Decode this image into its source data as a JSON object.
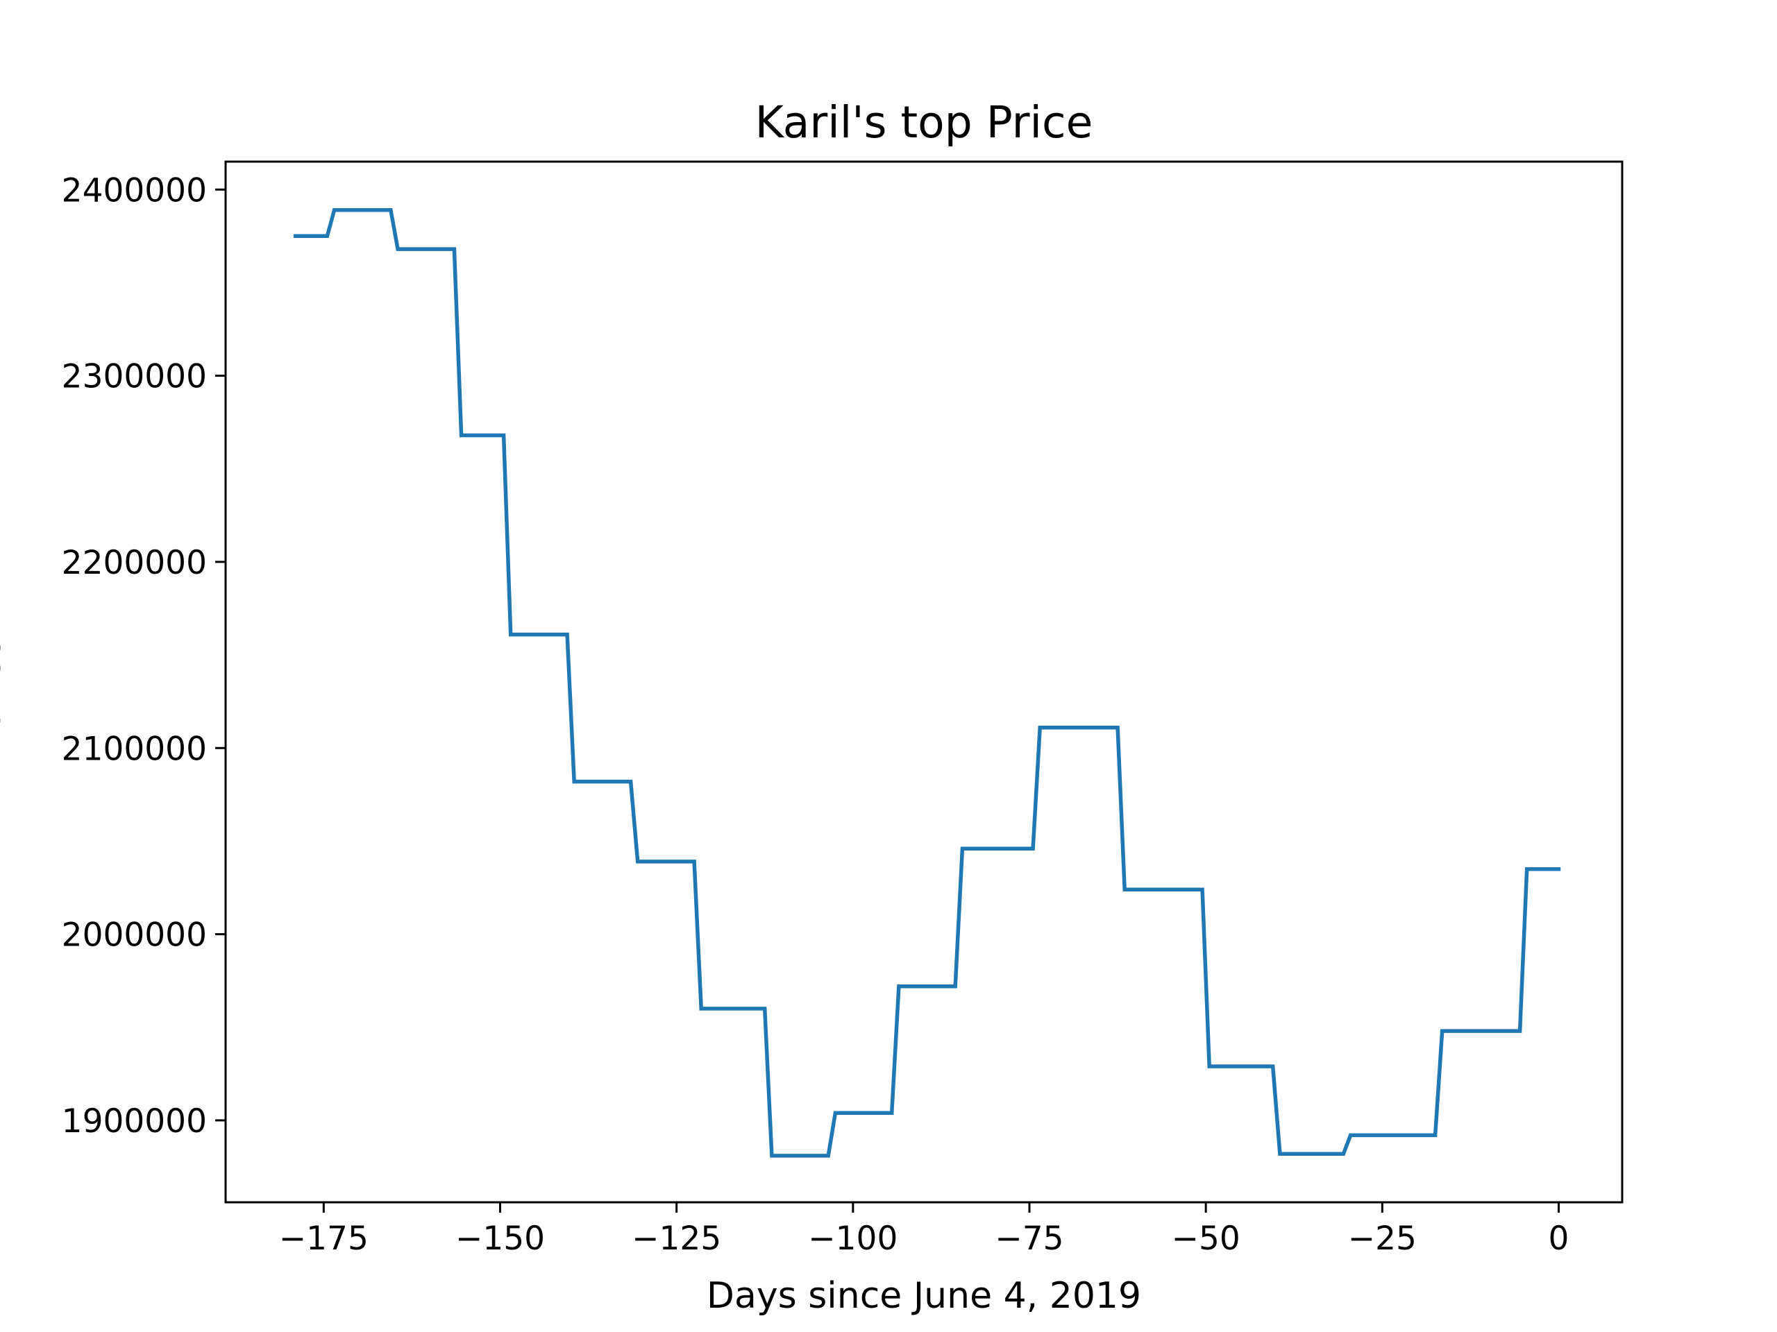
{
  "chart_data": {
    "type": "line",
    "title": "Karil's top Price",
    "xlabel": "Days since June 4, 2019",
    "ylabel": "Price",
    "xlim": [
      -188.9,
      9.0
    ],
    "ylim": [
      1856000,
      2415000
    ],
    "xticks": [
      -175,
      -150,
      -125,
      -100,
      -75,
      -50,
      -25,
      0
    ],
    "xtick_labels": [
      "−175",
      "−150",
      "−125",
      "−100",
      "−75",
      "−50",
      "−25",
      "0"
    ],
    "yticks": [
      1900000,
      2000000,
      2100000,
      2200000,
      2300000,
      2400000
    ],
    "ytick_labels": [
      "1900000",
      "2000000",
      "2100000",
      "2200000",
      "2300000",
      "2400000"
    ],
    "grid": false,
    "legend": "none",
    "colors": {
      "line": "#1f77b4",
      "axes": "#000000",
      "background": "#ffffff"
    },
    "series": [
      {
        "x": [
          -179,
          -174.5,
          -173.5,
          -165.5,
          -164.5,
          -156.5,
          -155.5,
          -149.5,
          -148.5,
          -140.5,
          -139.5,
          -131.5,
          -130.5,
          -122.5,
          -121.5,
          -112.5,
          -111.5,
          -103.5,
          -102.5,
          -94.5,
          -93.5,
          -85.5,
          -84.5,
          -74.5,
          -73.5,
          -62.5,
          -61.5,
          -50.5,
          -49.5,
          -40.5,
          -39.5,
          -30.5,
          -29.5,
          -17.5,
          -16.5,
          -5.5,
          -4.5,
          0
        ],
        "y": [
          2375000,
          2375000,
          2389000,
          2389000,
          2368000,
          2368000,
          2268000,
          2268000,
          2161000,
          2161000,
          2082000,
          2082000,
          2039000,
          2039000,
          1960000,
          1960000,
          1881000,
          1881000,
          1904000,
          1904000,
          1972000,
          1972000,
          2046000,
          2046000,
          2111000,
          2111000,
          2024000,
          2024000,
          1929000,
          1929000,
          1882000,
          1882000,
          1892000,
          1892000,
          1948000,
          1948000,
          2035000,
          2035000
        ]
      }
    ]
  }
}
